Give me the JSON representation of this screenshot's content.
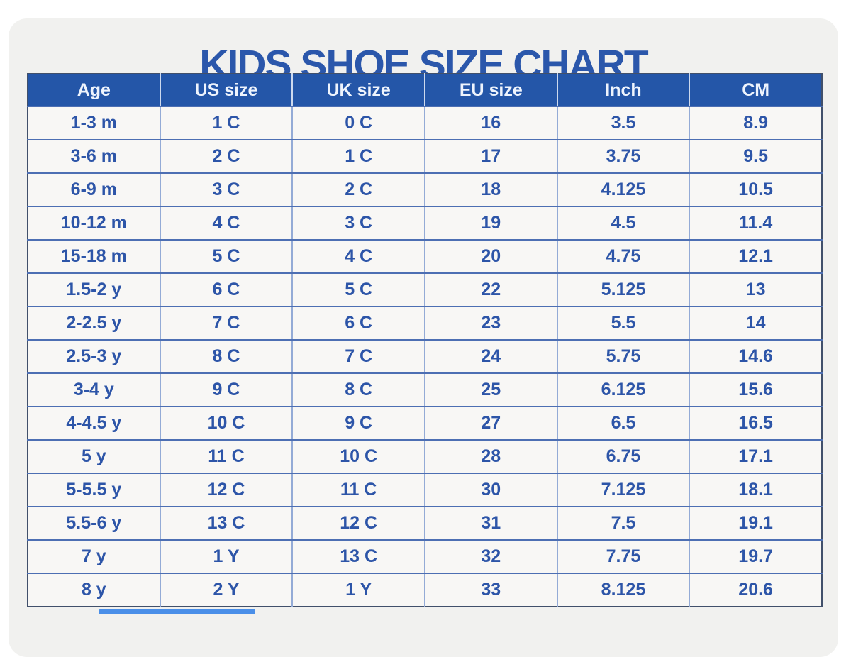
{
  "page": {
    "title": "KIDS SHOE SIZE CHART"
  },
  "colors": {
    "page_bg": "#ffffff",
    "card_bg": "#f1f1ef",
    "title_text": "#2b57ab",
    "header_bg": "#2456a8",
    "header_text": "#eef4fd",
    "body_text": "#2d55a8",
    "row_bg": "#f8f7f5",
    "border_outer": "#41506b",
    "border_row": "#4d6fb3",
    "border_col": "#94abd6",
    "header_divider": "#cdd9ee",
    "sliver": "#4a8fe8"
  },
  "chart_data": {
    "type": "table",
    "title": "KIDS SHOE SIZE CHART",
    "columns": [
      "Age",
      "US size",
      "UK size",
      "EU size",
      "Inch",
      "CM"
    ],
    "rows": [
      [
        "1-3 m",
        "1 C",
        "0 C",
        "16",
        "3.5",
        "8.9"
      ],
      [
        "3-6 m",
        "2 C",
        "1 C",
        "17",
        "3.75",
        "9.5"
      ],
      [
        "6-9 m",
        "3 C",
        "2 C",
        "18",
        "4.125",
        "10.5"
      ],
      [
        "10-12 m",
        "4 C",
        "3 C",
        "19",
        "4.5",
        "11.4"
      ],
      [
        "15-18 m",
        "5 C",
        "4 C",
        "20",
        "4.75",
        "12.1"
      ],
      [
        "1.5-2 y",
        "6 C",
        "5 C",
        "22",
        "5.125",
        "13"
      ],
      [
        "2-2.5 y",
        "7 C",
        "6 C",
        "23",
        "5.5",
        "14"
      ],
      [
        "2.5-3 y",
        "8 C",
        "7 C",
        "24",
        "5.75",
        "14.6"
      ],
      [
        "3-4 y",
        "9 C",
        "8 C",
        "25",
        "6.125",
        "15.6"
      ],
      [
        "4-4.5 y",
        "10 C",
        "9 C",
        "27",
        "6.5",
        "16.5"
      ],
      [
        "5 y",
        "11 C",
        "10 C",
        "28",
        "6.75",
        "17.1"
      ],
      [
        "5-5.5 y",
        "12 C",
        "11 C",
        "30",
        "7.125",
        "18.1"
      ],
      [
        "5.5-6 y",
        "13 C",
        "12 C",
        "31",
        "7.5",
        "19.1"
      ],
      [
        "7 y",
        "1 Y",
        "13 C",
        "32",
        "7.75",
        "19.7"
      ],
      [
        "8 y",
        "2 Y",
        "1 Y",
        "33",
        "8.125",
        "20.6"
      ]
    ]
  }
}
